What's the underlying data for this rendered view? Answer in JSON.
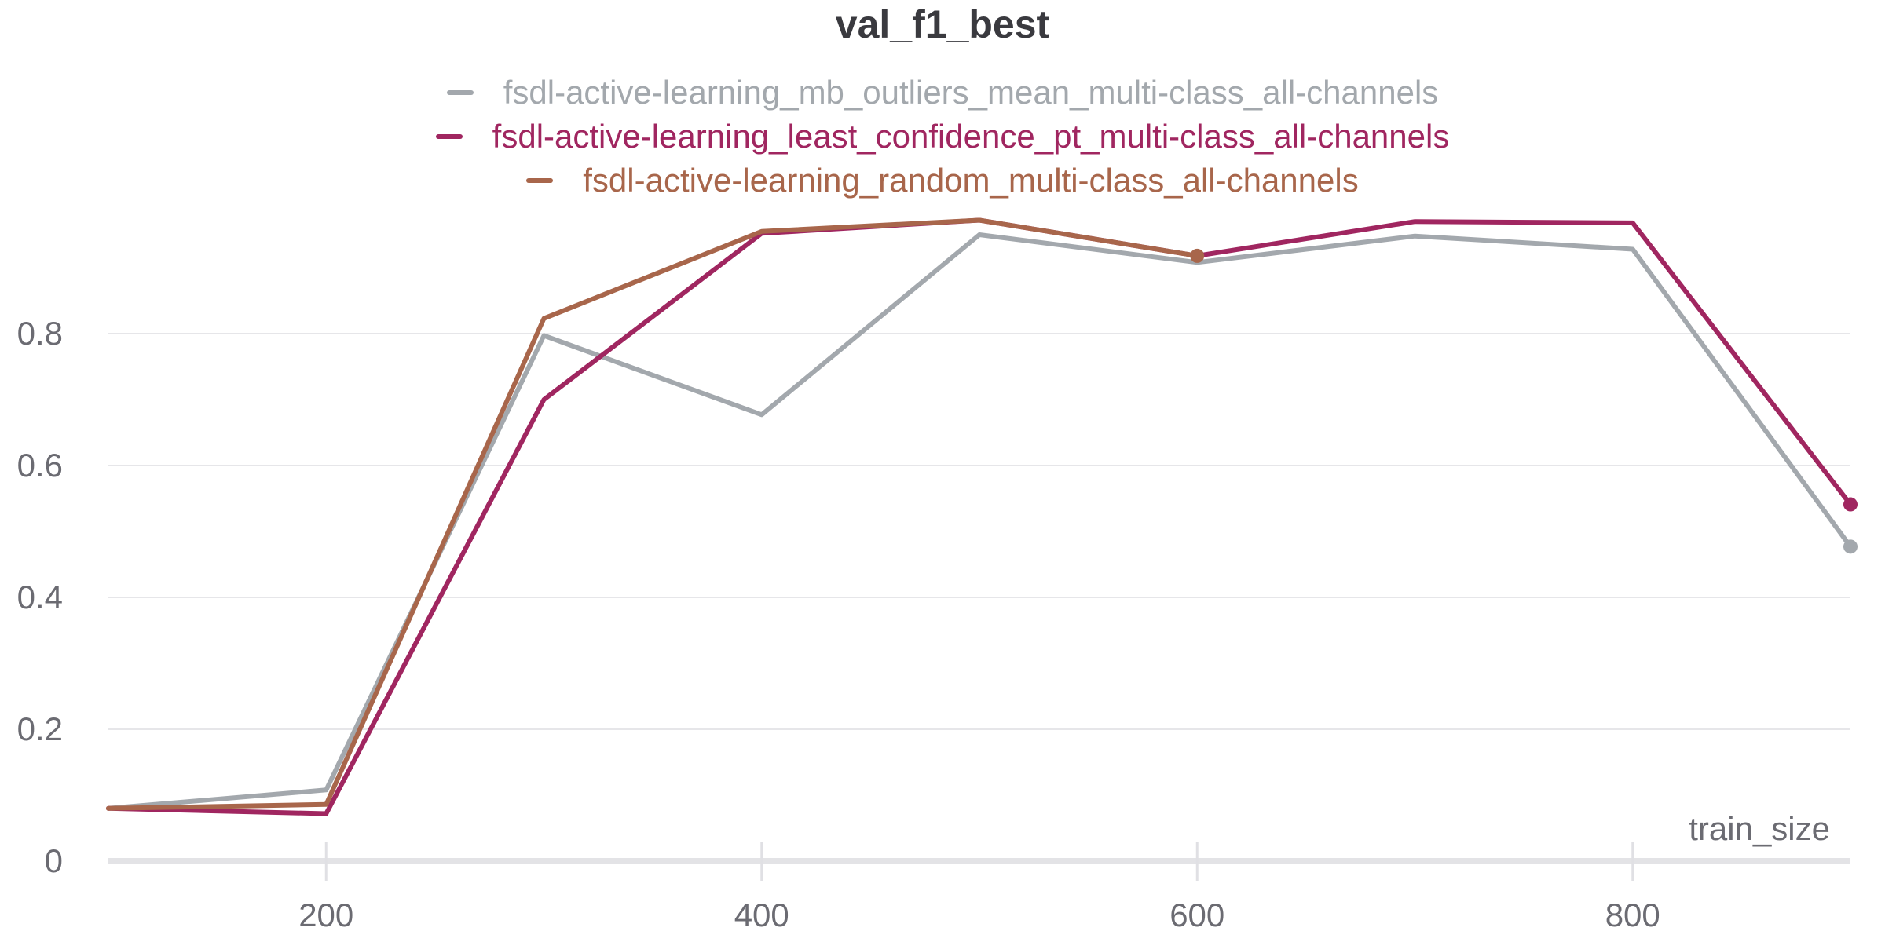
{
  "chart_data": {
    "type": "line",
    "title": "val_f1_best",
    "xlabel": "train_size",
    "ylabel": "",
    "xlim": [
      100,
      900
    ],
    "ylim": [
      0,
      1.0
    ],
    "x_ticks": [
      200,
      400,
      600,
      800
    ],
    "y_ticks": [
      0,
      0.2,
      0.4,
      0.6,
      0.8
    ],
    "y_tick_labels": [
      "0",
      "0.2",
      "0.4",
      "0.6",
      "0.8"
    ],
    "grid": "horizontal",
    "legend_position": "top-center",
    "series": [
      {
        "name": "fsdl-active-learning_mb_outliers_mean_multi-class_all-channels",
        "color": "#a3a8ad",
        "x": [
          100,
          200,
          300,
          400,
          500,
          600,
          700,
          800,
          900
        ],
        "y": [
          0.08,
          0.108,
          0.797,
          0.677,
          0.95,
          0.908,
          0.948,
          0.928,
          0.477
        ],
        "end_marker": true
      },
      {
        "name": "fsdl-active-learning_least_confidence_pt_multi-class_all-channels",
        "color": "#a02660",
        "x": [
          100,
          200,
          300,
          400,
          500,
          600,
          700,
          800,
          900
        ],
        "y": [
          0.08,
          0.072,
          0.7,
          0.952,
          0.972,
          0.918,
          0.97,
          0.968,
          0.541
        ],
        "end_marker": true
      },
      {
        "name": "fsdl-active-learning_random_multi-class_all-channels",
        "color": "#a8664b",
        "x": [
          100,
          200,
          300,
          400,
          500,
          600
        ],
        "y": [
          0.08,
          0.086,
          0.823,
          0.955,
          0.972,
          0.918
        ],
        "end_marker": true
      }
    ]
  }
}
